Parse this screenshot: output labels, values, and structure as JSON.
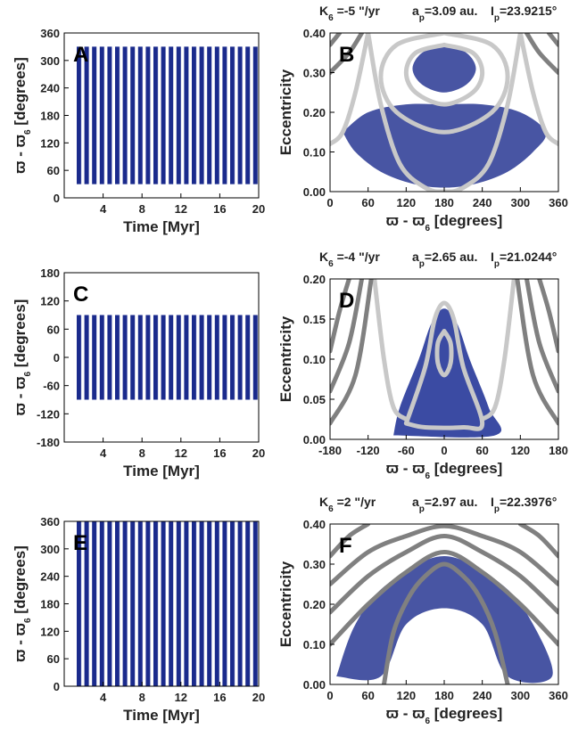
{
  "chart_data": [
    {
      "type": "band",
      "letter": "A",
      "ylabel": [
        "ϖ - ϖ",
        "6",
        " [degrees]"
      ],
      "xlabel": "Time [Myr]",
      "xlim": [
        0,
        20
      ],
      "xticks": [
        4,
        8,
        12,
        16,
        20
      ],
      "ylim": [
        0,
        360
      ],
      "yticks": [
        0,
        60,
        120,
        180,
        240,
        300,
        360
      ],
      "color": "#1a2a8c",
      "band": {
        "x": [
          1,
          20
        ],
        "lower": [
          30,
          30
        ],
        "upper": [
          330,
          330
        ]
      }
    },
    {
      "type": "region",
      "letter": "B",
      "title": [
        [
          "K",
          "6",
          " =-5 \"/yr"
        ],
        [
          "a",
          "p",
          "=3.09 au."
        ],
        [
          "I",
          "p",
          "=23.9215°"
        ]
      ],
      "ylabel": "Eccentricity",
      "xlabel": [
        "ϖ - ϖ",
        "6",
        " [degrees]"
      ],
      "xlim": [
        0,
        360
      ],
      "xticks": [
        0,
        60,
        120,
        180,
        240,
        300,
        360
      ],
      "ylim": [
        0,
        0.4
      ],
      "yticks": [
        {
          "value": 0,
          "label": "0.00"
        },
        {
          "value": 0.1,
          "label": "0.10"
        },
        {
          "value": 0.2,
          "label": "0.20"
        },
        {
          "value": 0.3,
          "label": "0.30"
        },
        {
          "value": 0.4,
          "label": "0.40"
        }
      ],
      "color": "#1a2a8c",
      "clouds": [
        {
          "x": [
            20,
            40,
            80,
            130,
            180,
            230,
            280,
            320,
            340,
            300,
            240,
            180,
            120,
            60
          ],
          "y": [
            0.15,
            0.1,
            0.05,
            0.02,
            0.01,
            0.02,
            0.05,
            0.1,
            0.15,
            0.2,
            0.22,
            0.22,
            0.22,
            0.2
          ]
        },
        {
          "x": [
            180,
            215,
            230,
            215,
            180,
            145,
            130,
            145
          ],
          "y": [
            0.37,
            0.35,
            0.31,
            0.27,
            0.25,
            0.27,
            0.31,
            0.35
          ]
        }
      ],
      "contours": [
        {
          "color": "#c8c8c8",
          "x": [
            180,
            225,
            240,
            225,
            180,
            135,
            120,
            135,
            180
          ],
          "y": [
            0.37,
            0.35,
            0.3,
            0.25,
            0.22,
            0.25,
            0.3,
            0.35,
            0.37
          ]
        },
        {
          "color": "#c8c8c8",
          "x": [
            180,
            255,
            280,
            255,
            180,
            105,
            80,
            105,
            180
          ],
          "y": [
            0.4,
            0.37,
            0.29,
            0.2,
            0.15,
            0.2,
            0.29,
            0.37,
            0.4
          ]
        },
        {
          "color": "#c8c8c8",
          "x": [
            60,
            80,
            110,
            150,
            180,
            210,
            250,
            280,
            300
          ],
          "y": [
            0.4,
            0.22,
            0.07,
            0.01,
            0,
            0.01,
            0.07,
            0.22,
            0.4
          ]
        },
        {
          "color": "#c8c8c8",
          "x": [
            0,
            20,
            40,
            60
          ],
          "y": [
            0.12,
            0.15,
            0.25,
            0.4
          ]
        },
        {
          "color": "#c8c8c8",
          "x": [
            300,
            320,
            340,
            360
          ],
          "y": [
            0.4,
            0.25,
            0.15,
            0.12
          ]
        },
        {
          "color": "#808080",
          "x": [
            0,
            30,
            50
          ],
          "y": [
            0.3,
            0.35,
            0.4
          ]
        },
        {
          "color": "#808080",
          "x": [
            0,
            15
          ],
          "y": [
            0.37,
            0.4
          ]
        },
        {
          "color": "#808080",
          "x": [
            310,
            330,
            360
          ],
          "y": [
            0.4,
            0.35,
            0.3
          ]
        },
        {
          "color": "#808080",
          "x": [
            345,
            360
          ],
          "y": [
            0.4,
            0.37
          ]
        }
      ]
    },
    {
      "type": "band",
      "letter": "C",
      "ylabel": [
        "ϖ - ϖ",
        "6",
        " [degrees]"
      ],
      "xlabel": "Time [Myr]",
      "xlim": [
        0,
        20
      ],
      "xticks": [
        4,
        8,
        12,
        16,
        20
      ],
      "ylim": [
        -180,
        180
      ],
      "yticks": [
        -180,
        -120,
        -60,
        0,
        60,
        120,
        180
      ],
      "color": "#1a2a8c",
      "band": {
        "x": [
          1,
          20
        ],
        "lower": [
          -90,
          -90
        ],
        "upper": [
          90,
          90
        ]
      }
    },
    {
      "type": "region",
      "letter": "D",
      "title": [
        [
          "K",
          "6",
          " =-4 \"/yr"
        ],
        [
          "a",
          "p",
          "=2.65 au."
        ],
        [
          "I",
          "p",
          "=21.0244°"
        ]
      ],
      "ylabel": "Eccentricity",
      "xlabel": [
        "ϖ - ϖ",
        "6",
        " [degrees]"
      ],
      "xlim": [
        -180,
        180
      ],
      "xticks": [
        -180,
        -120,
        -60,
        0,
        60,
        120,
        180
      ],
      "ylim": [
        0,
        0.2
      ],
      "yticks": [
        {
          "value": 0,
          "label": "0.00"
        },
        {
          "value": 0.05,
          "label": "0.05"
        },
        {
          "value": 0.1,
          "label": "0.10"
        },
        {
          "value": 0.15,
          "label": "0.15"
        },
        {
          "value": 0.2,
          "label": "0.20"
        }
      ],
      "color": "#0a1e8c",
      "clouds": [
        {
          "x": [
            -80,
            -70,
            -40,
            -20,
            0,
            20,
            40,
            70,
            80
          ],
          "y": [
            0.005,
            0.04,
            0.1,
            0.145,
            0.163,
            0.145,
            0.1,
            0.04,
            0.005
          ]
        }
      ],
      "contours": [
        {
          "color": "#c8c8c8",
          "x": [
            0,
            10,
            10,
            0,
            -10,
            -10,
            0
          ],
          "y": [
            0.135,
            0.12,
            0.095,
            0.08,
            0.095,
            0.12,
            0.135
          ]
        },
        {
          "color": "#c8c8c8",
          "x": [
            -60,
            -30,
            -15,
            0,
            15,
            30,
            60,
            30,
            -30,
            -60
          ],
          "y": [
            0.02,
            0.09,
            0.15,
            0.17,
            0.15,
            0.09,
            0.02,
            0.015,
            0.015,
            0.02
          ]
        },
        {
          "color": "#c8c8c8",
          "x": [
            -110,
            -95,
            -80,
            -60
          ],
          "y": [
            0.2,
            0.1,
            0.04,
            0.025
          ]
        },
        {
          "color": "#c8c8c8",
          "x": [
            60,
            80,
            95,
            110
          ],
          "y": [
            0.025,
            0.04,
            0.1,
            0.2
          ]
        },
        {
          "color": "#808080",
          "x": [
            -180,
            -140,
            -115
          ],
          "y": [
            0.02,
            0.08,
            0.2
          ]
        },
        {
          "color": "#808080",
          "x": [
            -180,
            -150,
            -130
          ],
          "y": [
            0.06,
            0.12,
            0.2
          ]
        },
        {
          "color": "#808080",
          "x": [
            -180,
            -165,
            -150
          ],
          "y": [
            0.11,
            0.16,
            0.2
          ]
        },
        {
          "color": "#808080",
          "x": [
            115,
            140,
            180
          ],
          "y": [
            0.2,
            0.08,
            0.02
          ]
        },
        {
          "color": "#808080",
          "x": [
            130,
            150,
            180
          ],
          "y": [
            0.2,
            0.12,
            0.06
          ]
        },
        {
          "color": "#808080",
          "x": [
            150,
            165,
            180
          ],
          "y": [
            0.2,
            0.16,
            0.11
          ]
        }
      ]
    },
    {
      "type": "band",
      "letter": "E",
      "ylabel": [
        "ϖ - ϖ",
        "6",
        " [degrees]"
      ],
      "xlabel": "Time [Myr]",
      "xlim": [
        0,
        20
      ],
      "xticks": [
        4,
        8,
        12,
        16,
        20
      ],
      "ylim": [
        0,
        360
      ],
      "yticks": [
        0,
        60,
        120,
        180,
        240,
        300,
        360
      ],
      "color": "#1a2a8c",
      "band": {
        "x": [
          1,
          20
        ],
        "lower": [
          0,
          0
        ],
        "upper": [
          360,
          360
        ]
      }
    },
    {
      "type": "region",
      "letter": "F",
      "title": [
        [
          "K",
          "6",
          " =2 \"/yr"
        ],
        [
          "a",
          "p",
          "=2.97 au."
        ],
        [
          "I",
          "p",
          "=22.3976°"
        ]
      ],
      "ylabel": "Eccentricity",
      "xlabel": [
        "ϖ - ϖ",
        "6",
        " [degrees]"
      ],
      "xlim": [
        0,
        360
      ],
      "xticks": [
        0,
        60,
        120,
        180,
        240,
        300,
        360
      ],
      "ylim": [
        0,
        0.4
      ],
      "yticks": [
        {
          "value": 0,
          "label": "0.00"
        },
        {
          "value": 0.1,
          "label": "0.10"
        },
        {
          "value": 0.2,
          "label": "0.20"
        },
        {
          "value": 0.3,
          "label": "0.30"
        },
        {
          "value": 0.4,
          "label": "0.40"
        }
      ],
      "color": "#1a2a8c",
      "clouds": [
        {
          "x": [
            10,
            40,
            90,
            180,
            270,
            320,
            350,
            280,
            240,
            180,
            120,
            80
          ],
          "y": [
            0.02,
            0.15,
            0.25,
            0.32,
            0.25,
            0.15,
            0.02,
            0.02,
            0.15,
            0.19,
            0.15,
            0.02
          ]
        }
      ],
      "contours": [
        {
          "color": "#808080",
          "x": [
            85,
            100,
            125,
            150,
            180,
            210,
            235,
            260,
            280
          ],
          "y": [
            0,
            0.13,
            0.22,
            0.27,
            0.3,
            0.27,
            0.22,
            0.13,
            0
          ]
        },
        {
          "color": "#808080",
          "x": [
            0,
            60,
            120,
            180,
            240,
            300,
            360
          ],
          "y": [
            0.1,
            0.2,
            0.28,
            0.33,
            0.28,
            0.2,
            0.1
          ]
        },
        {
          "color": "#808080",
          "x": [
            0,
            60,
            120,
            180,
            240,
            300,
            360
          ],
          "y": [
            0.18,
            0.27,
            0.33,
            0.37,
            0.33,
            0.27,
            0.18
          ]
        },
        {
          "color": "#808080",
          "x": [
            0,
            60,
            120,
            180,
            240,
            300,
            360
          ],
          "y": [
            0.25,
            0.33,
            0.37,
            0.395,
            0.37,
            0.33,
            0.25
          ]
        },
        {
          "color": "#808080",
          "x": [
            0,
            30,
            60
          ],
          "y": [
            0.32,
            0.37,
            0.4
          ]
        },
        {
          "color": "#808080",
          "x": [
            300,
            330,
            360
          ],
          "y": [
            0.4,
            0.37,
            0.32
          ]
        }
      ]
    }
  ]
}
